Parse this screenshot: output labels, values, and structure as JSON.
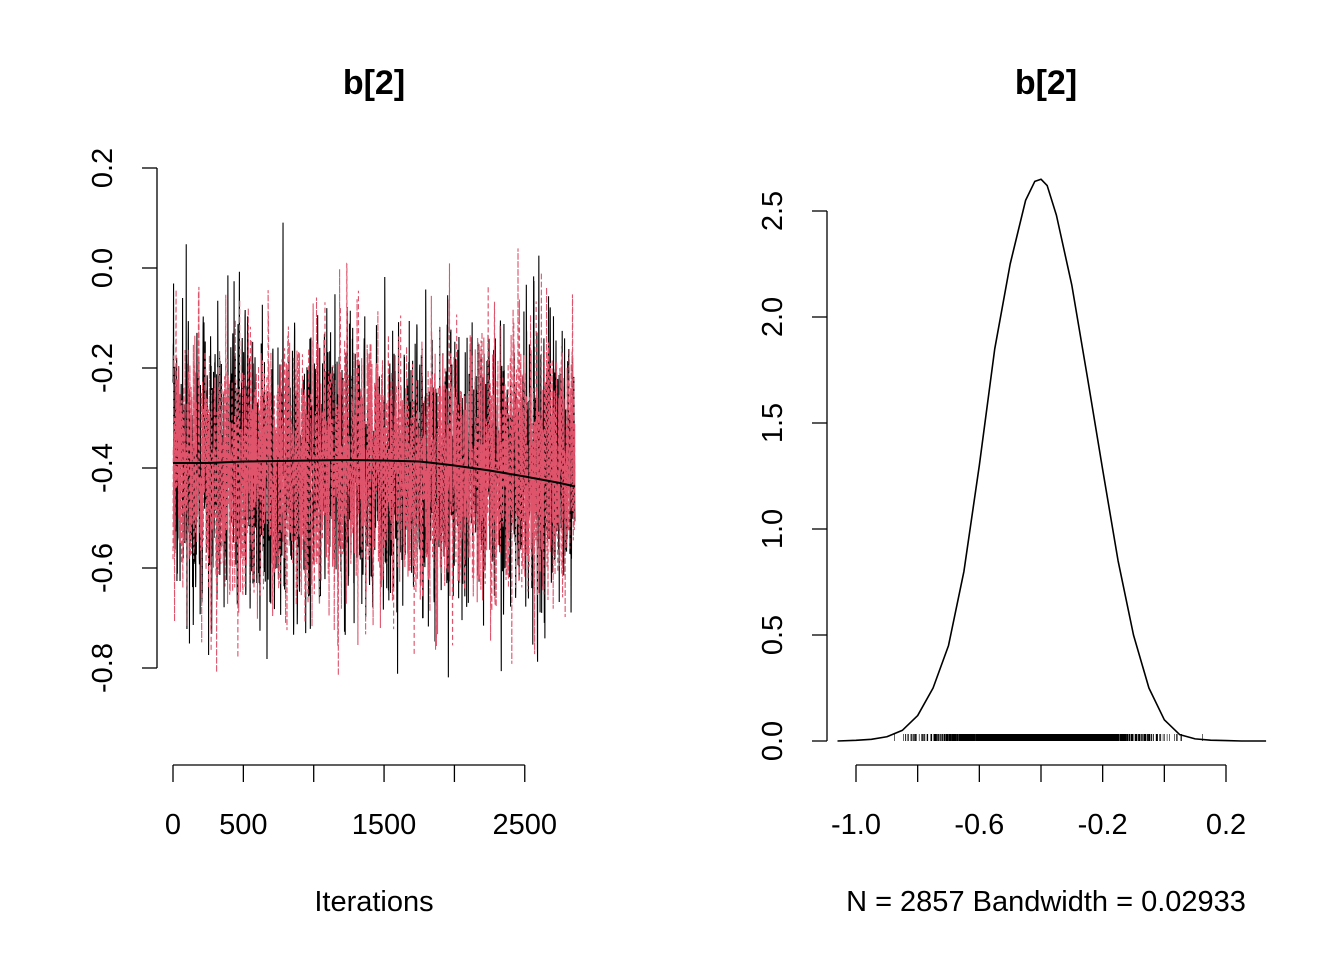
{
  "chart_data": [
    {
      "type": "line",
      "title": "b[2]",
      "xlabel": "Iterations",
      "ylabel": "",
      "xlim": [
        0,
        2857
      ],
      "ylim": [
        -0.95,
        0.18
      ],
      "x_ticks": [
        0,
        500,
        1000,
        1500,
        2000,
        2500
      ],
      "x_tick_labels": [
        "0",
        "500",
        "",
        "1500",
        "",
        "2500"
      ],
      "y_ticks": [
        0.2,
        0.0,
        -0.2,
        -0.4,
        -0.6,
        -0.8
      ],
      "y_tick_labels": [
        "0.2",
        "0.0",
        "-0.2",
        "-0.4",
        "-0.6",
        "-0.8"
      ],
      "trace": {
        "n": 2857,
        "center": -0.4,
        "spread": 0.13,
        "min": -0.95,
        "max": 0.18,
        "chain_colors": [
          "#000000",
          "#DF536B"
        ]
      },
      "series": [
        {
          "color": "#000000",
          "x": [
            0,
            250,
            500,
            750,
            1000,
            1250,
            1500,
            1750,
            1850,
            2000,
            2250,
            2500,
            2750,
            2857
          ],
          "values": [
            -0.39,
            -0.39,
            -0.387,
            -0.386,
            -0.385,
            -0.384,
            -0.385,
            -0.387,
            -0.39,
            -0.395,
            -0.405,
            -0.417,
            -0.43,
            -0.437
          ]
        }
      ]
    },
    {
      "type": "line",
      "title": "b[2]",
      "xlabel": "N = 2857   Bandwidth = 0.02933",
      "ylabel": "",
      "xlim": [
        -1.06,
        0.33
      ],
      "ylim": [
        0,
        2.65
      ],
      "x_ticks": [
        -1.0,
        -0.8,
        -0.6,
        -0.4,
        -0.2,
        0.0,
        0.2
      ],
      "x_tick_labels": [
        "-1.0",
        "",
        "-0.6",
        "",
        "-0.2",
        "",
        "0.2"
      ],
      "y_ticks": [
        0.0,
        0.5,
        1.0,
        1.5,
        2.0,
        2.5
      ],
      "y_tick_labels": [
        "0.0",
        "0.5",
        "1.0",
        "1.5",
        "2.0",
        "2.5"
      ],
      "density": {
        "x": [
          -1.06,
          -1.0,
          -0.95,
          -0.9,
          -0.85,
          -0.8,
          -0.75,
          -0.7,
          -0.65,
          -0.6,
          -0.55,
          -0.5,
          -0.45,
          -0.42,
          -0.4,
          -0.38,
          -0.35,
          -0.3,
          -0.25,
          -0.2,
          -0.15,
          -0.1,
          -0.05,
          0.0,
          0.05,
          0.1,
          0.15,
          0.2,
          0.25,
          0.33
        ],
        "y": [
          0.0,
          0.003,
          0.008,
          0.02,
          0.05,
          0.12,
          0.25,
          0.45,
          0.8,
          1.3,
          1.85,
          2.25,
          2.55,
          2.64,
          2.65,
          2.62,
          2.48,
          2.15,
          1.72,
          1.28,
          0.85,
          0.5,
          0.25,
          0.1,
          0.03,
          0.01,
          0.004,
          0.002,
          0.0,
          0.0
        ]
      },
      "rug": {
        "n": 2857,
        "range": [
          -0.95,
          0.2
        ]
      }
    }
  ]
}
